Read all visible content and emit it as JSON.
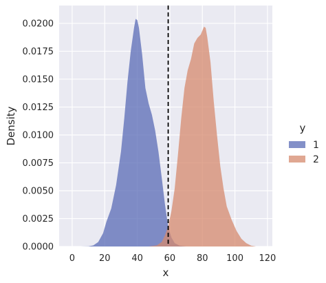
{
  "chart_data": {
    "type": "area",
    "xlabel": "x",
    "ylabel": "Density",
    "xlim": [
      -8,
      123
    ],
    "ylim": [
      0,
      0.0216
    ],
    "xticks": [
      0,
      20,
      40,
      60,
      80,
      100,
      120
    ],
    "xtick_labels": [
      "0",
      "20",
      "40",
      "60",
      "80",
      "100",
      "120"
    ],
    "yticks": [
      0,
      0.0025,
      0.005,
      0.0075,
      0.01,
      0.0125,
      0.015,
      0.0175,
      0.02
    ],
    "ytick_labels": [
      "0.0000",
      "0.0025",
      "0.0050",
      "0.0075",
      "0.0100",
      "0.0125",
      "0.0150",
      "0.0175",
      "0.0200"
    ],
    "grid": true,
    "background": "#eaeaf2",
    "threshold_line": {
      "x": 59,
      "style": "dashed",
      "color": "#000000"
    },
    "legend": {
      "title": "y",
      "placement": "right"
    },
    "series": [
      {
        "name": "1",
        "color": "#5a6bb5",
        "points": [
          [
            5,
            0
          ],
          [
            10,
            2e-05
          ],
          [
            13,
            0.0001
          ],
          [
            16,
            0.0004
          ],
          [
            19,
            0.0012
          ],
          [
            21,
            0.0022
          ],
          [
            24,
            0.0034
          ],
          [
            27,
            0.0055
          ],
          [
            30,
            0.0085
          ],
          [
            32,
            0.0115
          ],
          [
            34,
            0.0148
          ],
          [
            36,
            0.0175
          ],
          [
            38,
            0.0196
          ],
          [
            39,
            0.0204
          ],
          [
            40,
            0.0203
          ],
          [
            41,
            0.0196
          ],
          [
            43,
            0.0172
          ],
          [
            45,
            0.0142
          ],
          [
            47,
            0.0128
          ],
          [
            49,
            0.0118
          ],
          [
            51,
            0.0104
          ],
          [
            53,
            0.0085
          ],
          [
            55,
            0.0062
          ],
          [
            57,
            0.0038
          ],
          [
            59,
            0.0018
          ],
          [
            61,
            0.0008
          ],
          [
            63,
            0.0003
          ],
          [
            66,
            8e-05
          ],
          [
            70,
            0
          ]
        ]
      },
      {
        "name": "2",
        "color": "#d58a6d",
        "points": [
          [
            47,
            0
          ],
          [
            52,
            0.0001
          ],
          [
            55,
            0.0004
          ],
          [
            57,
            0.001
          ],
          [
            59,
            0.0018
          ],
          [
            61,
            0.0032
          ],
          [
            63,
            0.0052
          ],
          [
            65,
            0.0082
          ],
          [
            67,
            0.0115
          ],
          [
            69,
            0.0142
          ],
          [
            71,
            0.0158
          ],
          [
            73,
            0.0168
          ],
          [
            75,
            0.0182
          ],
          [
            77,
            0.0187
          ],
          [
            79,
            0.019
          ],
          [
            81,
            0.0197
          ],
          [
            82,
            0.0196
          ],
          [
            83,
            0.0188
          ],
          [
            85,
            0.0165
          ],
          [
            87,
            0.013
          ],
          [
            89,
            0.01
          ],
          [
            91,
            0.0072
          ],
          [
            93,
            0.0052
          ],
          [
            95,
            0.0036
          ],
          [
            98,
            0.0024
          ],
          [
            101,
            0.0014
          ],
          [
            104,
            0.0007
          ],
          [
            107,
            0.0003
          ],
          [
            110,
            8e-05
          ],
          [
            113,
            0
          ]
        ]
      }
    ]
  }
}
